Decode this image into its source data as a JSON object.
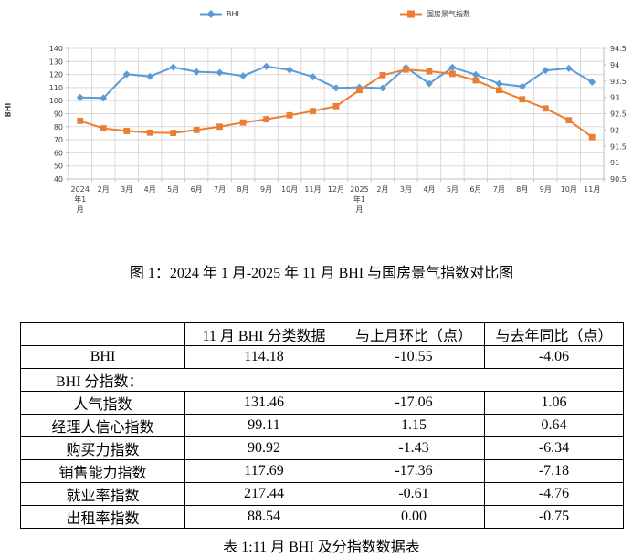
{
  "legend": {
    "items": [
      {
        "label": "BHI",
        "color": "#5B9BD5",
        "marker": "diamond"
      },
      {
        "label": "国房景气指数",
        "color": "#ED7D31",
        "marker": "square"
      }
    ]
  },
  "chart_data": {
    "type": "line",
    "title": "",
    "ylabel": "BHI",
    "x": [
      "2024年1月",
      "2月",
      "3月",
      "4月",
      "5月",
      "6月",
      "7月",
      "8月",
      "9月",
      "10月",
      "11月",
      "12月",
      "2025年1月",
      "2月",
      "3月",
      "4月",
      "5月",
      "6月",
      "7月",
      "8月",
      "9月",
      "10月",
      "11月"
    ],
    "series": [
      {
        "name": "BHI",
        "axis": "left",
        "color": "#5B9BD5",
        "marker": "diamond",
        "values": [
          102.4,
          102.0,
          120.2,
          118.5,
          125.6,
          122.1,
          121.5,
          118.9,
          126.2,
          123.5,
          118.24,
          109.7,
          110.2,
          109.6,
          125.4,
          113.1,
          125.4,
          119.9,
          113.0,
          110.8,
          123.1,
          124.73,
          114.18
        ]
      },
      {
        "name": "国房景气指数",
        "axis": "right",
        "color": "#ED7D31",
        "marker": "square",
        "values": [
          92.28,
          92.05,
          91.97,
          91.92,
          91.91,
          92.0,
          92.1,
          92.23,
          92.33,
          92.45,
          92.58,
          92.73,
          93.22,
          93.68,
          93.85,
          93.8,
          93.72,
          93.52,
          93.22,
          92.94,
          92.66,
          92.3,
          91.78
        ]
      }
    ],
    "left_axis": {
      "min": 40,
      "max": 140,
      "step": 10
    },
    "right_axis": {
      "min": 90.5,
      "max": 94.5,
      "step": 0.5
    },
    "grid": true,
    "legend_position": "top"
  },
  "figure_caption": "图 1：2024 年 1 月-2025 年 11 月 BHI 与国房景气指数对比图",
  "table": {
    "headers": [
      "",
      "11 月 BHI 分类数据",
      "与上月环比（点）",
      "与去年同比（点）"
    ],
    "rows": [
      {
        "label": "BHI",
        "values": [
          "114.18",
          "-10.55",
          "-4.06"
        ]
      },
      {
        "label": "BHI 分指数：",
        "section": true,
        "values": []
      },
      {
        "label": "人气指数",
        "values": [
          "131.46",
          "-17.06",
          "1.06"
        ]
      },
      {
        "label": "经理人信心指数",
        "values": [
          "99.11",
          "1.15",
          "0.64"
        ]
      },
      {
        "label": "购买力指数",
        "values": [
          "90.92",
          "-1.43",
          "-6.34"
        ]
      },
      {
        "label": "销售能力指数",
        "values": [
          "117.69",
          "-17.36",
          "-7.18"
        ]
      },
      {
        "label": "就业率指数",
        "values": [
          "217.44",
          "-0.61",
          "-4.76"
        ]
      },
      {
        "label": "出租率指数",
        "values": [
          "88.54",
          "0.00",
          "-0.75"
        ]
      }
    ],
    "caption": "表 1:11 月 BHI 及分指数数据表"
  },
  "colors": {
    "series_bhi": "#5B9BD5",
    "series_guofang": "#ED7D31",
    "gridline": "#D9D9D9",
    "axis_line": "#BFBFBF",
    "axis_text": "#404040",
    "table_border": "#000000"
  }
}
